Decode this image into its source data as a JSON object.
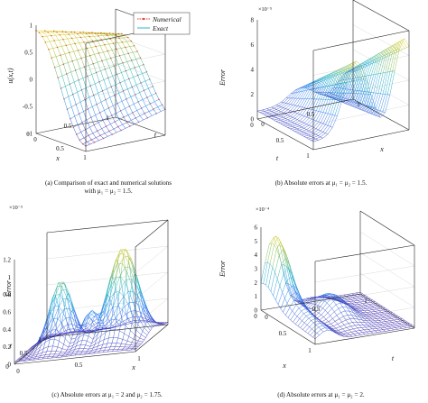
{
  "chart_data": [
    {
      "type": "surface",
      "panel": "a",
      "caption_line1": "(a) Comparison of exact and numerical solutions",
      "caption_line2": "with μ₁ = μ₂ = 1.5.",
      "zlabel": "u(x,t)",
      "xlabel": "x",
      "ylabel": "t",
      "zticks": [
        "1",
        "0.5",
        "0",
        "-0.5",
        "-1"
      ],
      "xticks": [
        "0",
        "0.5",
        "1"
      ],
      "yticks": [
        "0",
        "0.5",
        "1"
      ],
      "legend": [
        "Numerical",
        "Exact"
      ],
      "legend_position": "top-right",
      "colors": {
        "numerical": "#e8342c",
        "exact": "#31b3c4"
      }
    },
    {
      "type": "surface",
      "panel": "b",
      "caption": "(b) Absolute errors at μ₁ = μ₂ = 1.5.",
      "exponent": "×10⁻⁵",
      "zlabel": "Error",
      "xlabel": "x",
      "ylabel": "t",
      "zticks": [
        "8",
        "6",
        "4",
        "2",
        "0"
      ],
      "xticks": [
        "0",
        "0.5",
        "1"
      ],
      "yticks": [
        "0",
        "0.5",
        "1"
      ]
    },
    {
      "type": "surface",
      "panel": "c",
      "caption": "(c) Absolute errors at μ₁ = 2 and μ₂ = 1.75.",
      "exponent": "×10⁻⁵",
      "zlabel": "Error",
      "xlabel": "x",
      "ylabel": "t",
      "zticks": [
        "1.2",
        "1",
        "0.8",
        "0.6",
        "0.4",
        "0.2",
        "0"
      ],
      "xticks": [
        "0",
        "0.5",
        "1"
      ],
      "yticks": [
        "0",
        "0.5",
        "1"
      ]
    },
    {
      "type": "surface",
      "panel": "d",
      "caption": "(d) Absolute errors at μ₁ = μ₂ = 2.",
      "exponent": "×10⁻⁴",
      "zlabel": "Error",
      "xlabel": "x",
      "ylabel": "t",
      "zticks": [
        "6",
        "5",
        "4",
        "3",
        "2",
        "1",
        "0"
      ],
      "xticks": [
        "0",
        "0.5",
        "1"
      ],
      "yticks": [
        "0",
        "0.5",
        "1"
      ]
    }
  ]
}
